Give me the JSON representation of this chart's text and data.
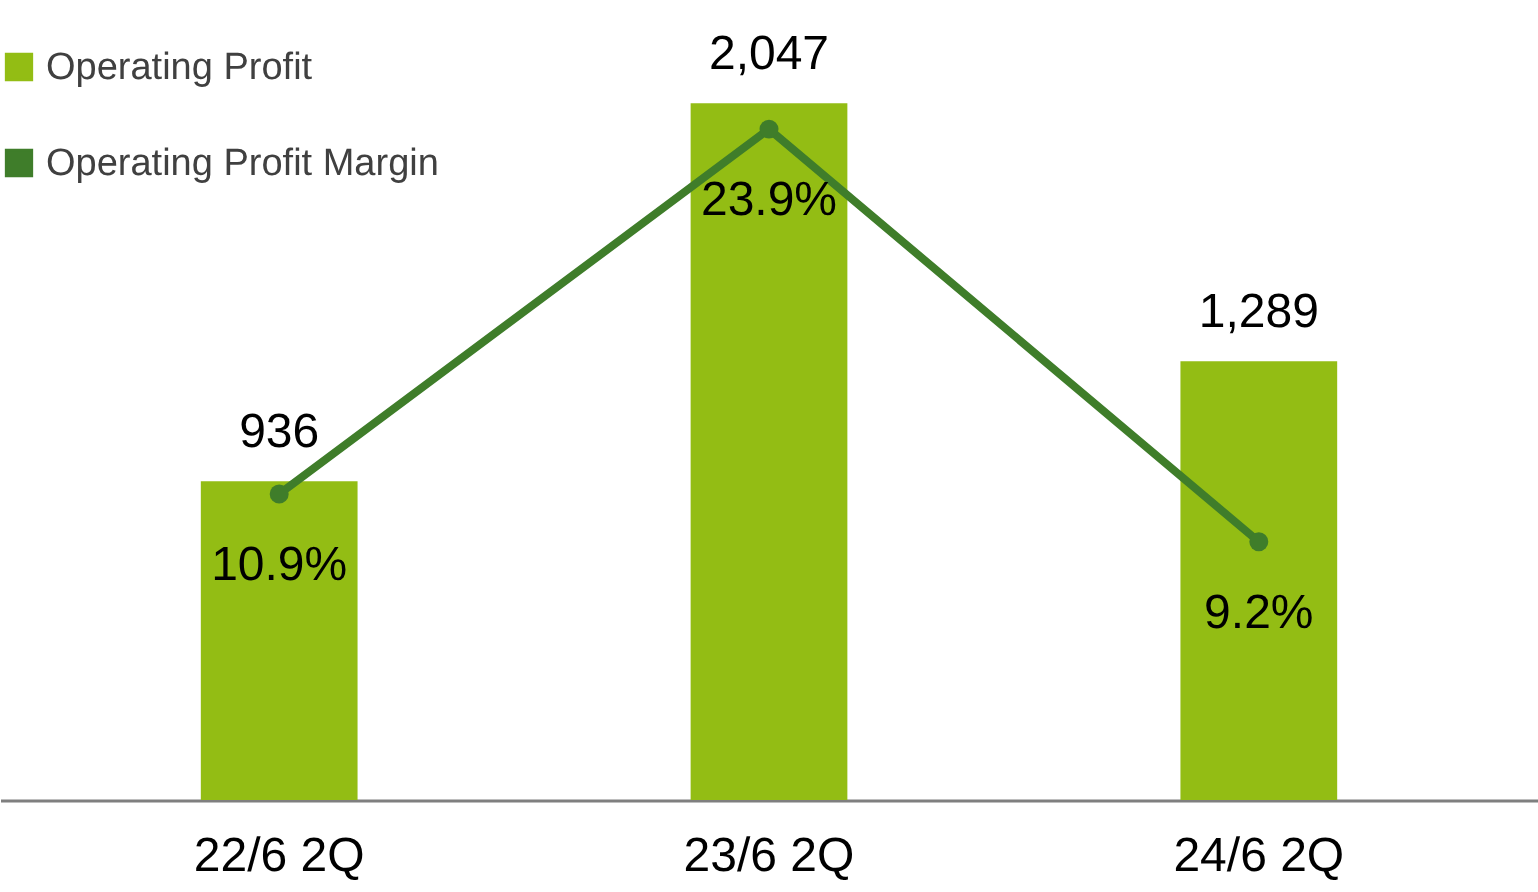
{
  "chart_data": {
    "type": "bar",
    "categories": [
      "22/6 2Q",
      "23/6 2Q",
      "24/6 2Q"
    ],
    "series": [
      {
        "name": "Operating Profit",
        "color": "#93bd14",
        "values": [
          936,
          2047,
          1289
        ],
        "value_labels": [
          "936",
          "2,047",
          "1,289"
        ]
      },
      {
        "name": "Operating Profit Margin",
        "type": "line",
        "axis": "y2",
        "color": "#3f7d2a",
        "values": [
          10.9,
          23.9,
          9.2
        ],
        "value_labels": [
          "10.9%",
          "23.9%",
          "9.2%"
        ]
      }
    ],
    "ylim": [
      0,
      2350
    ],
    "y2lim": [
      0,
      28.5
    ],
    "tick_labels": "x",
    "legend": "top left",
    "marker": "circle",
    "line_style": "solid"
  }
}
